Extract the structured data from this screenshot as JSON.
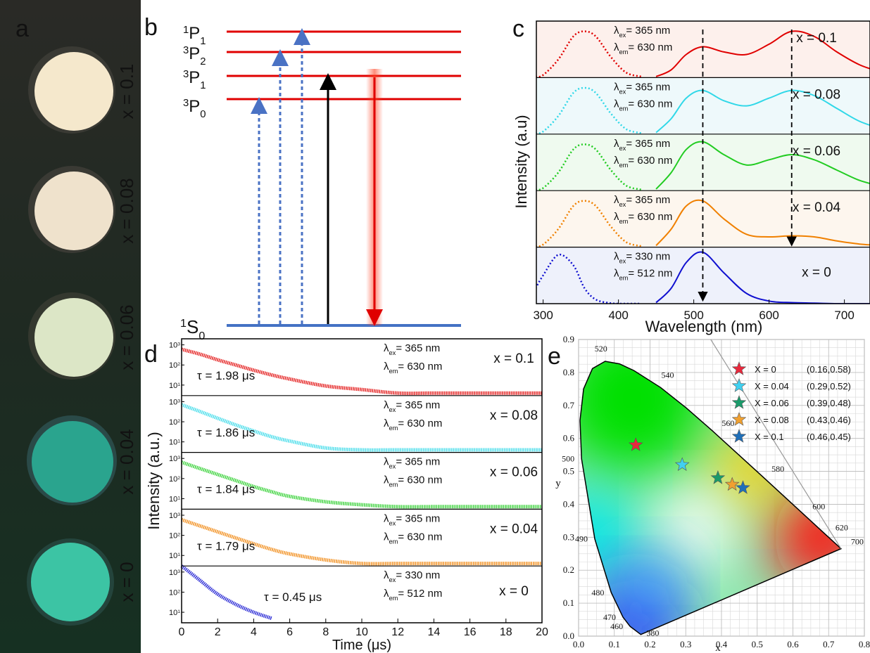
{
  "panel_a": {
    "letter": "a",
    "samples": [
      "x = 0.1",
      "x = 0.08",
      "x = 0.06",
      "x = 0.04",
      "x = 0"
    ]
  },
  "panel_b": {
    "letter": "b",
    "levels": [
      {
        "sup": "1",
        "base": "P",
        "sub": "1"
      },
      {
        "sup": "3",
        "base": "P",
        "sub": "2"
      },
      {
        "sup": "3",
        "base": "P",
        "sub": "1"
      },
      {
        "sup": "3",
        "base": "P",
        "sub": "0"
      }
    ],
    "ground": {
      "sup": "1",
      "base": "S",
      "sub": "0"
    }
  },
  "panel_c": {
    "letter": "c",
    "type": "line",
    "xlabel": "Wavelength (nm)",
    "ylabel": "Intensity (a.u)",
    "xlim": [
      291,
      734
    ],
    "xticks": [
      300,
      400,
      500,
      600,
      700
    ],
    "ylim": [
      0,
      1.1
    ],
    "markers": [
      512,
      630
    ],
    "ex_x": [
      290,
      300,
      320,
      340,
      355,
      370,
      390,
      410,
      430
    ],
    "em_x": [
      450,
      470,
      490,
      512,
      540,
      570,
      600,
      630,
      660,
      690,
      720,
      750
    ],
    "panels": [
      {
        "label": "x = 0.1",
        "color": "#e00000",
        "ex": {
          "sym": "λ",
          "sub": "ex",
          "rest": "= 365 nm"
        },
        "em": {
          "sym": "λ",
          "sub": "em",
          "rest": "= 630 nm"
        },
        "ex_values": [
          0.02,
          0.05,
          0.35,
          0.8,
          0.9,
          0.8,
          0.4,
          0.1,
          0.02
        ],
        "em_values": [
          0.02,
          0.15,
          0.45,
          0.6,
          0.5,
          0.45,
          0.65,
          0.9,
          0.8,
          0.5,
          0.25,
          0.1
        ]
      },
      {
        "label": "x = 0.08",
        "color": "#30d8e8",
        "ex": {
          "sym": "λ",
          "sub": "ex",
          "rest": "= 365 nm"
        },
        "em": {
          "sym": "λ",
          "sub": "em",
          "rest": "= 630 nm"
        },
        "ex_values": [
          0.02,
          0.05,
          0.35,
          0.8,
          0.9,
          0.8,
          0.4,
          0.1,
          0.02
        ],
        "em_values": [
          0.03,
          0.3,
          0.7,
          0.85,
          0.65,
          0.55,
          0.7,
          0.85,
          0.75,
          0.5,
          0.25,
          0.1
        ]
      },
      {
        "label": "x = 0.06",
        "color": "#22cc22",
        "ex": {
          "sym": "λ",
          "sub": "ex",
          "rest": "= 365 nm"
        },
        "em": {
          "sym": "λ",
          "sub": "em",
          "rest": "= 630 nm"
        },
        "ex_values": [
          0.02,
          0.05,
          0.35,
          0.8,
          0.9,
          0.8,
          0.4,
          0.1,
          0.02
        ],
        "em_values": [
          0.03,
          0.35,
          0.8,
          0.95,
          0.7,
          0.5,
          0.6,
          0.7,
          0.6,
          0.4,
          0.2,
          0.08
        ]
      },
      {
        "label": "x = 0.04",
        "color": "#f08000",
        "ex": {
          "sym": "λ",
          "sub": "ex",
          "rest": "= 365 nm"
        },
        "em": {
          "sym": "λ",
          "sub": "em",
          "rest": "= 630 nm"
        },
        "ex_values": [
          0.02,
          0.05,
          0.35,
          0.8,
          0.9,
          0.8,
          0.4,
          0.1,
          0.02
        ],
        "em_values": [
          0.03,
          0.35,
          0.8,
          0.9,
          0.55,
          0.25,
          0.2,
          0.22,
          0.2,
          0.12,
          0.06,
          0.03
        ]
      },
      {
        "label": "x = 0",
        "color": "#1010d0",
        "ex": {
          "sym": "λ",
          "sub": "ex",
          "rest": "= 330 nm"
        },
        "em": {
          "sym": "λ",
          "sub": "em",
          "rest": "= 512 nm"
        },
        "ex_values": [
          0.3,
          0.55,
          0.95,
          0.75,
          0.3,
          0.08,
          0.01,
          0,
          0
        ],
        "em_values": [
          0.02,
          0.3,
          0.8,
          1.0,
          0.6,
          0.2,
          0.05,
          0.02,
          0.01,
          0,
          0,
          0
        ]
      }
    ]
  },
  "panel_d": {
    "letter": "d",
    "type": "line",
    "xlabel": "Time (μs)",
    "ylabel": "Intensity (a.u.)",
    "xlim": [
      0,
      20
    ],
    "xticks": [
      0,
      2,
      4,
      6,
      8,
      10,
      12,
      14,
      16,
      18,
      20
    ],
    "ylim": [
      3,
      2000
    ],
    "log": true,
    "yticks": [
      {
        "value": 10,
        "base": "10",
        "exp": "1"
      },
      {
        "value": 100,
        "base": "10",
        "exp": "2"
      },
      {
        "value": 1000,
        "base": "10",
        "exp": "3"
      }
    ],
    "x": [
      0,
      1,
      2,
      3,
      4,
      5,
      6,
      8,
      10,
      12,
      14,
      16,
      18,
      20
    ],
    "panels": [
      {
        "label": "x = 0.1",
        "color": "#e00000",
        "tau": "τ = 1.98 μs",
        "ex": {
          "sym": "λ",
          "sub": "ex",
          "rest": "= 365 nm"
        },
        "em": {
          "sym": "λ",
          "sub": "em",
          "rest": "= 630 nm"
        },
        "values": [
          600,
          350,
          180,
          100,
          55,
          32,
          20,
          9,
          6,
          4,
          4,
          4,
          4,
          4
        ]
      },
      {
        "label": "x = 0.08",
        "color": "#30d8e8",
        "tau": "τ = 1.86 μs",
        "ex": {
          "sym": "λ",
          "sub": "ex",
          "rest": "= 365 nm"
        },
        "em": {
          "sym": "λ",
          "sub": "em",
          "rest": "= 630 nm"
        },
        "values": [
          700,
          330,
          150,
          70,
          35,
          18,
          11,
          5,
          4,
          4,
          4,
          4,
          4,
          4
        ]
      },
      {
        "label": "x = 0.06",
        "color": "#22cc22",
        "tau": "τ = 1.84 μs",
        "ex": {
          "sym": "λ",
          "sub": "ex",
          "rest": "= 365 nm"
        },
        "em": {
          "sym": "λ",
          "sub": "em",
          "rest": "= 630 nm"
        },
        "values": [
          650,
          320,
          160,
          80,
          40,
          22,
          13,
          7,
          5,
          4,
          4,
          4,
          4,
          4
        ]
      },
      {
        "label": "x = 0.04",
        "color": "#f08000",
        "tau": "τ = 1.79 μs",
        "ex": {
          "sym": "λ",
          "sub": "ex",
          "rest": "= 365 nm"
        },
        "em": {
          "sym": "λ",
          "sub": "em",
          "rest": "= 630 nm"
        },
        "values": [
          600,
          300,
          150,
          75,
          38,
          20,
          12,
          6,
          4,
          4,
          4,
          4,
          4,
          4
        ]
      },
      {
        "label": "x = 0",
        "color": "#1010d0",
        "tau": "τ = 0.45 μs",
        "ex": {
          "sym": "λ",
          "sub": "ex",
          "rest": "= 330 nm"
        },
        "em": {
          "sym": "λ",
          "sub": "em",
          "rest": "= 512 nm"
        },
        "values": [
          2000,
          400,
          80,
          25,
          10,
          5,
          null,
          null,
          null,
          null,
          null,
          null,
          null,
          null
        ]
      }
    ]
  },
  "panel_e": {
    "letter": "e",
    "type": "scatter",
    "xlabel": "x",
    "ylabel": "y",
    "xlim": [
      0,
      0.8
    ],
    "ylim": [
      0,
      0.9
    ],
    "xticks": [
      {
        "value": 0,
        "label": "0.0"
      },
      0.1,
      0.2,
      0.3,
      0.4,
      0.5,
      0.6,
      0.7,
      0.8
    ],
    "yticks": [
      {
        "value": 0,
        "label": "0.0"
      },
      0.1,
      0.2,
      0.3,
      0.4,
      0.5,
      0.6,
      0.7,
      0.8,
      0.9
    ],
    "locus": {
      "labels": [
        380,
        460,
        470,
        480,
        490,
        500,
        null,
        null,
        null,
        520,
        null,
        null,
        540,
        null,
        560,
        580,
        600,
        620,
        700
      ],
      "x": [
        0.1741,
        0.144,
        0.1241,
        0.0913,
        0.0454,
        0.0082,
        0.0039,
        0.0139,
        0.0389,
        0.0743,
        0.1142,
        0.1547,
        0.2296,
        0.3016,
        0.3731,
        0.5125,
        0.627,
        0.6915,
        0.7347
      ],
      "y": [
        0.005,
        0.0297,
        0.0578,
        0.1327,
        0.295,
        0.5384,
        0.6548,
        0.7502,
        0.812,
        0.8338,
        0.8262,
        0.8059,
        0.7543,
        0.6923,
        0.6245,
        0.4866,
        0.3725,
        0.3083,
        0.2653
      ]
    },
    "points": [
      {
        "name": "X = 0",
        "coords": "(0.16,0.58)",
        "x": 0.16,
        "y": 0.58,
        "color": "#e8283c",
        "text_color": "#e02020"
      },
      {
        "name": "X = 0.04",
        "coords": "(0.29,0.52)",
        "x": 0.29,
        "y": 0.52,
        "color": "#40d0f0",
        "text_color": "#30c0e0"
      },
      {
        "name": "X = 0.06",
        "coords": "(0.39,0.48)",
        "x": 0.39,
        "y": 0.48,
        "color": "#1a9a6a",
        "text_color": "#1a9a6a"
      },
      {
        "name": "X = 0.08",
        "coords": "(0.43,0.46)",
        "x": 0.43,
        "y": 0.46,
        "color": "#f0a030",
        "text_color": "#e07020"
      },
      {
        "name": "X = 0.1",
        "coords": "(0.46,0.45)",
        "x": 0.46,
        "y": 0.45,
        "color": "#1f6fb8",
        "text_color": "#3080c0"
      }
    ]
  }
}
